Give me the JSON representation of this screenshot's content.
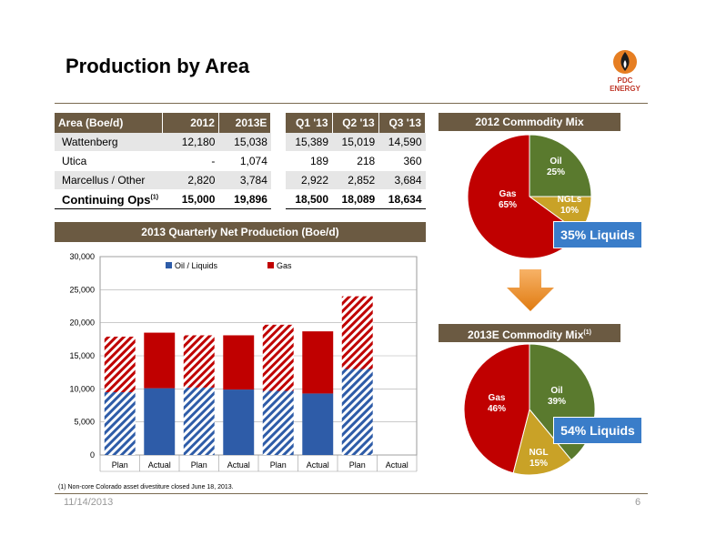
{
  "title": "Production by Area",
  "logo": {
    "text": "PDC ENERGY"
  },
  "table": {
    "header_area": "Area (Boe/d)",
    "years": [
      "2012",
      "2013E"
    ],
    "quarters": [
      "Q1 '13",
      "Q2 '13",
      "Q3 '13"
    ],
    "rows": [
      {
        "area": "Wattenberg",
        "y2012": "12,180",
        "y2013e": "15,038",
        "q1": "15,389",
        "q2": "15,019",
        "q3": "14,590"
      },
      {
        "area": "Utica",
        "y2012": "-",
        "y2013e": "1,074",
        "q1": "189",
        "q2": "218",
        "q3": "360"
      },
      {
        "area": "Marcellus / Other",
        "y2012": "2,820",
        "y2013e": "3,784",
        "q1": "2,922",
        "q2": "2,852",
        "q3": "3,684"
      }
    ],
    "total": {
      "area": "Continuing Ops",
      "footnote_mark": "(1)",
      "y2012": "15,000",
      "y2013e": "19,896",
      "q1": "18,500",
      "q2": "18,089",
      "q3": "18,634"
    }
  },
  "chart_data": [
    {
      "type": "bar",
      "title": "2013 Quarterly Net Production (Boe/d)",
      "categories": [
        "Plan",
        "Actual",
        "Plan",
        "Actual",
        "Plan",
        "Actual",
        "Plan",
        "Actual"
      ],
      "series": [
        {
          "name": "Oil / Liquids",
          "values": [
            9500,
            10100,
            10200,
            9900,
            9700,
            9300,
            13000,
            null
          ]
        },
        {
          "name": "Gas",
          "values": [
            8400,
            8400,
            7900,
            8200,
            10000,
            9400,
            11000,
            null
          ]
        }
      ],
      "hatched": [
        true,
        false,
        true,
        false,
        true,
        false,
        true,
        false
      ],
      "ylim": [
        0,
        30000
      ],
      "yticks": [
        "0",
        "5,000",
        "10,000",
        "15,000",
        "20,000",
        "25,000",
        "30,000"
      ],
      "stacked": true,
      "legend": "top",
      "colors": {
        "oil": "#2e5ca8",
        "gas": "#c00000"
      }
    },
    {
      "type": "pie",
      "title": "2012 Commodity Mix",
      "slices": [
        {
          "name": "Oil",
          "value": 25,
          "label": "25%",
          "color": "#5a7a2e"
        },
        {
          "name": "NGLs",
          "value": 10,
          "label": "10%",
          "color": "#c9a227"
        },
        {
          "name": "Gas",
          "value": 65,
          "label": "65%",
          "color": "#c00000"
        }
      ],
      "callout": "35% Liquids"
    },
    {
      "type": "pie",
      "title": "2013E Commodity Mix",
      "title_mark": "(1)",
      "slices": [
        {
          "name": "Oil",
          "value": 39,
          "label": "39%",
          "color": "#5a7a2e"
        },
        {
          "name": "NGL",
          "value": 15,
          "label": "15%",
          "color": "#c9a227"
        },
        {
          "name": "Gas",
          "value": 46,
          "label": "46%",
          "color": "#c00000"
        }
      ],
      "callout": "54% Liquids"
    }
  ],
  "footnote": "(1) Non-core Colorado asset divestiture closed June 18, 2013.",
  "footer": {
    "date": "11/14/2013",
    "page": "6"
  }
}
